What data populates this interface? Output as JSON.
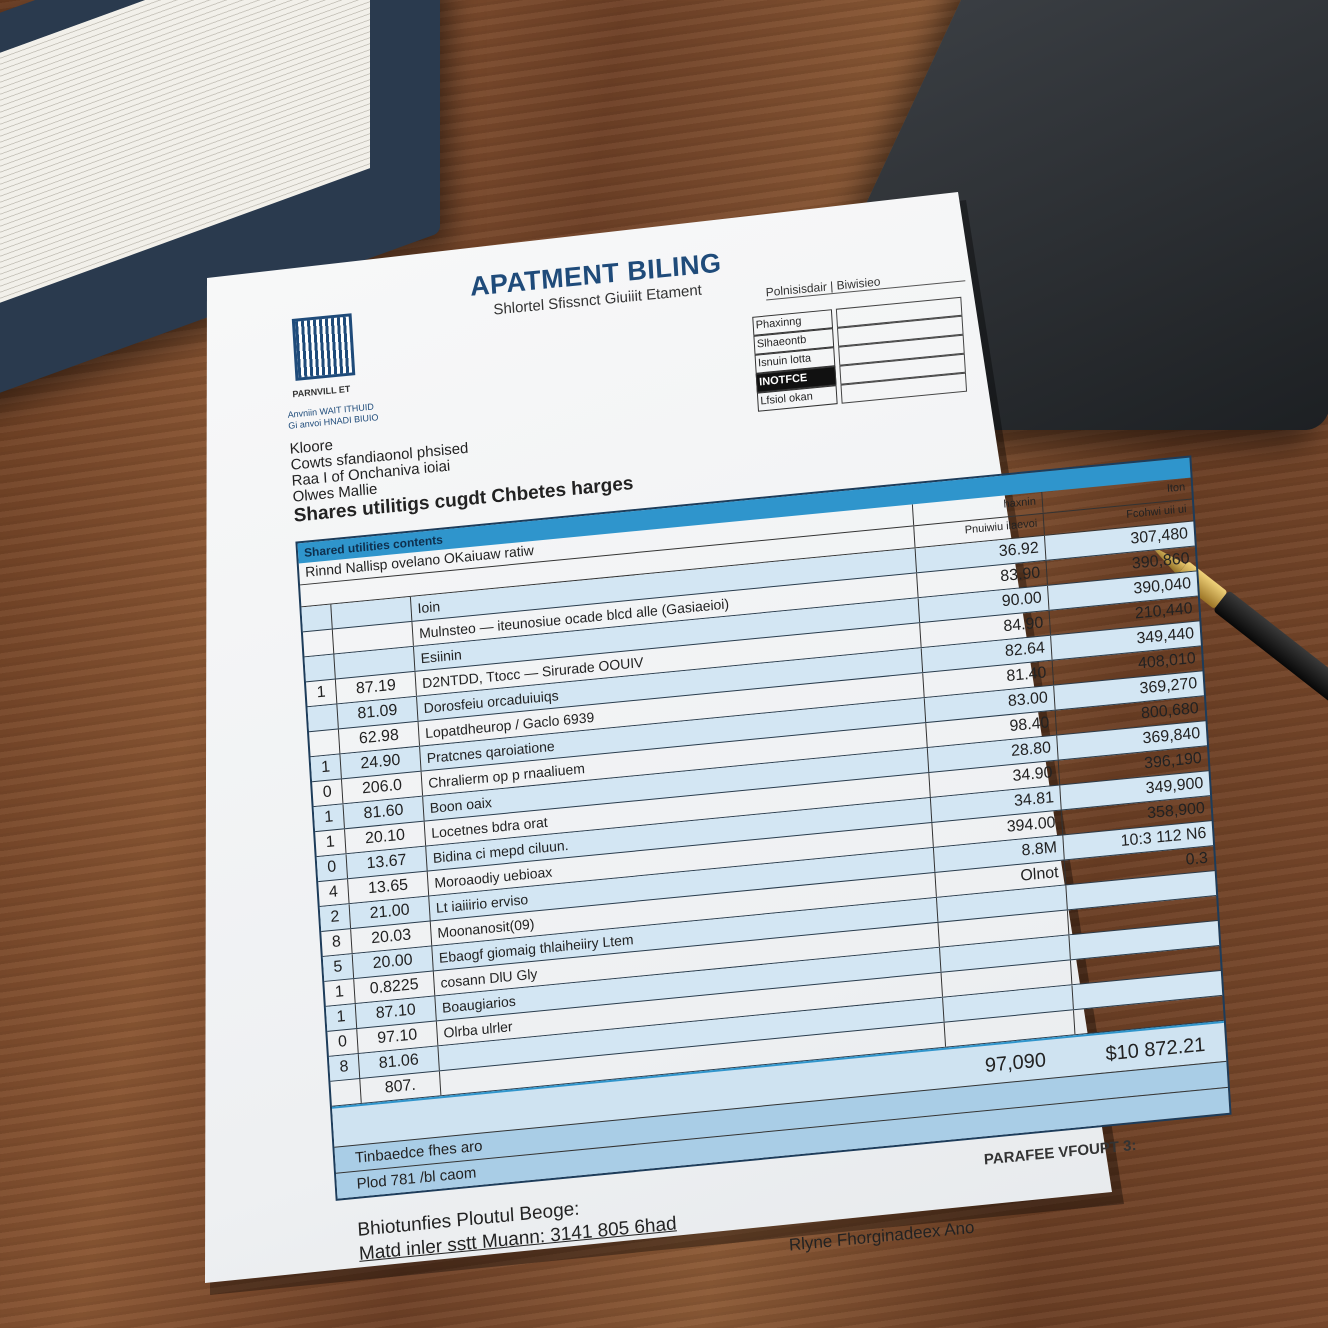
{
  "header": {
    "title": "APATMENT BILING",
    "subtitle": "Shlortel Sfissnct Giuiiit Etament",
    "ref_label": "Polnisisdair | Biwisieo"
  },
  "logo": {
    "caption": "PARNVILL ET",
    "address": [
      "Anvniin WAIT ITHUID",
      "Gi anvoi HNADI BIUIO"
    ]
  },
  "form": {
    "fields": [
      {
        "label": "Phaxinng"
      },
      {
        "label": "Slhaeontb"
      },
      {
        "label": "Isnuin lotta"
      },
      {
        "label": "INOTFCE"
      },
      {
        "label": "Lfsiol okan"
      }
    ]
  },
  "intro": {
    "lines": [
      "Kloore",
      "Cowts sfandiaonol phsised",
      "Raa I of Onchaniva ioiai",
      "Olwes Mallie"
    ],
    "heading": "Shares utilitigs cugdt Chbetes harges"
  },
  "table": {
    "band1": "Shared utilities contents",
    "band2": "Rinnd Nallisp ovelano OKaiuaw ratiw",
    "headers": [
      "haxnin",
      "Iton",
      "Pnuiwiu ilaevoi",
      "Fcohwi uii ui"
    ],
    "rows": [
      {
        "n": "",
        "v": "",
        "d": "Ioin",
        "a": "36.92",
        "t": "307,480"
      },
      {
        "n": "",
        "v": "",
        "d": "Mulnsteo — iteunosiue ocade blcd alle (Gasiaeioi)",
        "a": "83.90",
        "t": "390,860"
      },
      {
        "n": "",
        "v": "",
        "d": "Esiinin",
        "a": "90.00",
        "t": "390,040"
      },
      {
        "n": "1",
        "v": "87.19",
        "d": "D2NTDD, Ttocc — Sirurade OOUIV",
        "a": "84.90",
        "t": "210,440"
      },
      {
        "n": "",
        "v": "81.09",
        "d": "Dorosfeiu orcaduiuiqs",
        "a": "82.64",
        "t": "349,440"
      },
      {
        "n": "",
        "v": "62.98",
        "d": "Lopatdheurop / Gaclo 6939",
        "a": "81.40",
        "t": "408,010"
      },
      {
        "n": "1",
        "v": "24.90",
        "d": "Pratcnes qaroiatione",
        "a": "83.00",
        "t": "369,270"
      },
      {
        "n": "0",
        "v": "206.0",
        "d": "Chralierm op p rnaaliuem",
        "a": "98.40",
        "t": "800,680"
      },
      {
        "n": "1",
        "v": "81.60",
        "d": "Boon oaix",
        "a": "28.80",
        "t": "369,840"
      },
      {
        "n": "1",
        "v": "20.10",
        "d": "Locetnes bdra orat",
        "a": "34.90",
        "t": "396,190"
      },
      {
        "n": "0",
        "v": "13.67",
        "d": "Bidina ci mepd ciluun.",
        "a": "34.81",
        "t": "349,900"
      },
      {
        "n": "4",
        "v": "13.65",
        "d": "Moroaodiy uebioax",
        "a": "394.00",
        "t": "358,900"
      },
      {
        "n": "2",
        "v": "21.00",
        "d": "Lt iaiiirio erviso",
        "a": "8.8M",
        "t": "10:3 112 N6"
      },
      {
        "n": "8",
        "v": "20.03",
        "d": "Moonanosit(09)",
        "a": "Olnot",
        "t": "0.3"
      },
      {
        "n": "5",
        "v": "20.00",
        "d": "Ebaogf giomaig thlaiheiiry Ltem",
        "a": "",
        "t": ""
      },
      {
        "n": "1",
        "v": "0.8225",
        "d": "cosann DlU Gly",
        "a": "",
        "t": ""
      },
      {
        "n": "1",
        "v": "87.10",
        "d": "Boaugiarios",
        "a": "",
        "t": ""
      },
      {
        "n": "0",
        "v": "97.10",
        "d": "Olrba ulrler",
        "a": "",
        "t": ""
      },
      {
        "n": "8",
        "v": "81.06",
        "d": "",
        "a": "",
        "t": ""
      },
      {
        "n": "",
        "v": "807.",
        "d": "",
        "a": "",
        "t": ""
      }
    ],
    "subtotal": "97,090",
    "total": "$10 872.21",
    "foot1": "Tinbaedce fhes aro",
    "foot2": "Plod 781 /bl caom"
  },
  "footer": {
    "payref": "PARAFEE VFOUPT 3:",
    "sig_line1": "Bhiotunfies Ploutul Beoge:",
    "sig_line2": "Matd inler sstt Muann: 3141 805 6had",
    "signer": "Rlyne Fhorginadeex Ano"
  },
  "colors": {
    "accent": "#2f95cc",
    "title": "#1f4b7a",
    "row_tint": "#d3e6f3"
  }
}
